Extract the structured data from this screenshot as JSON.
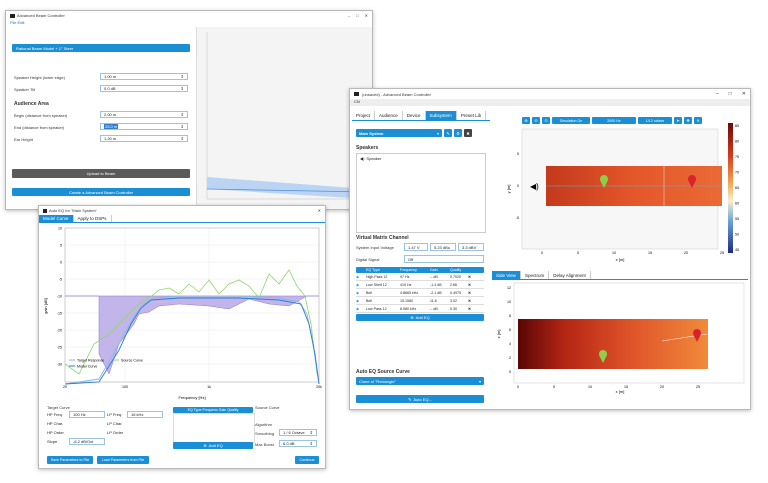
{
  "w1": {
    "title": "Advanced Beam Controller",
    "menu": "File  Edit",
    "banner": "Rational Beam Model + 1° Steer",
    "fields": [
      {
        "label": "Speaker Height (lower edge)",
        "value": "1.00 m"
      },
      {
        "label": "Speaker Tilt",
        "value": "0.0 dB"
      }
    ],
    "section": "Audience Area",
    "area_fields": [
      {
        "label": "Begin (distance from speaker)",
        "value": "2.00 m"
      },
      {
        "label": "End (distance from speaker)",
        "value": "25.0 m"
      },
      {
        "label": "Ear Height",
        "value": "1.20 m"
      }
    ],
    "upload_btn": "Upload to Beam",
    "create_btn": "Create a Advanced Beam Controller"
  },
  "w2": {
    "title": "Auto EQ for \"Main System\"",
    "tabs": [
      "Model Curve",
      "Apply to DSPs"
    ],
    "y_ticks": [
      "10",
      "5",
      "0",
      "-5",
      "-10",
      "-15",
      "-20",
      "-25",
      "-30"
    ],
    "x_ticks": [
      "20",
      "100",
      "1k",
      "20k"
    ],
    "xlabel": "Frequency [Hz]",
    "ylabel": "gain [dB]",
    "legend": [
      "Target Response",
      "Source Curve",
      "Model Curve"
    ],
    "target_title": "Target Curve",
    "target_rows": [
      {
        "label": "HP Freq.",
        "value": "100 Hz",
        "label2": "LP Freq.",
        "value2": "16 kHz"
      },
      {
        "label": "HP Char.",
        "value": "Butterworth",
        "label2": "LP Char.",
        "value2": "Butterworth"
      },
      {
        "label": "HP Order",
        "value": "24 dB/Oct",
        "label2": "LP Order",
        "value2": "24 dB/Oct"
      },
      {
        "label": "Slope",
        "value": "-6.2 dB/Oct",
        "label2": "",
        "value2": ""
      }
    ],
    "eq_header": "EQ Type  Frequenc  Gain  Quality",
    "add_eq": "Add EQ",
    "source_title": "Source Curve",
    "source_value": "Clone of \"Rectangle\"",
    "algo_title": "Algorithm",
    "smoothing_label": "Smoothing",
    "smoothing_value": "1 / 6 Octave",
    "max_boost_label": "Max Boost",
    "max_boost_value": "6.0 dB",
    "save_btn": "Save Parameters to File",
    "load_btn": "Load Parameters from File",
    "continue_btn": "Continue"
  },
  "w3": {
    "title": "(unsaved) - Advanced Beam Controller",
    "menu": "CN",
    "tabs": [
      "Project",
      "Audience",
      "Device",
      "Subsystem",
      "Preset Lib"
    ],
    "active_tab": "Subsystem",
    "system_select": "Main System",
    "speakers_title": "Speakers",
    "speaker_item": "Speaker",
    "vmc_title": "Virtual Matrix Channel",
    "sys_input_label": "System Input Voltage",
    "sys_input_values": [
      "1.47 V",
      "5.23 dBu",
      "3.3 dBV"
    ],
    "digital_label": "Digital Signal",
    "digital_value": "Off",
    "eq_columns": [
      "EQ Type",
      "Frequency",
      "Gain",
      "Quality"
    ],
    "eq_rows": [
      {
        "type": "High Pass 12",
        "freq": "97 Hz",
        "gain": "-- dB",
        "q": "0.7020"
      },
      {
        "type": "Low Shelf 12",
        "freq": "419 Hz",
        "gain": "-1.4 dB",
        "q": "2.66"
      },
      {
        "type": "Bell",
        "freq": "4.8665 kHz",
        "gain": "-2.1 dB",
        "q": "0.4975"
      },
      {
        "type": "Bell",
        "freq": "15.1580",
        "gain": "11.6",
        "q": "3.02"
      },
      {
        "type": "Low Pass 12",
        "freq": "8.980 kHz",
        "gain": "-- dB",
        "q": "0.30"
      }
    ],
    "add_eq": "Add EQ",
    "auto_title": "Auto EQ Source Curve",
    "auto_value": "Clone of \"Rectangle\"",
    "auto_btn": "Auto EQ...",
    "top_toolbar": [
      "Simulation On",
      "2000 Hz",
      "1/12 octave"
    ],
    "top_y": [
      "5",
      "0",
      "-5"
    ],
    "top_x": [
      "0",
      "5",
      "10",
      "15",
      "20",
      "25"
    ],
    "top_xlabel": "x [m]",
    "top_ylabel": "y [m]",
    "colorbar_ticks": [
      "85",
      "80",
      "75",
      "70",
      "65",
      "60",
      "55",
      "50",
      "45"
    ],
    "colorbar_label": "[dB SPL]",
    "bottom_tabs": [
      "Side View",
      "Spectrum",
      "Delay Alignment"
    ],
    "bottom_toolbar": "Speaker",
    "bot_y": [
      "12",
      "10",
      "8",
      "6",
      "4",
      "2",
      "0"
    ],
    "bot_x": [
      "0",
      "5",
      "10",
      "15",
      "20",
      "25"
    ],
    "bot_xlabel": "x [m]",
    "bot_ylabel": "z [m]"
  }
}
